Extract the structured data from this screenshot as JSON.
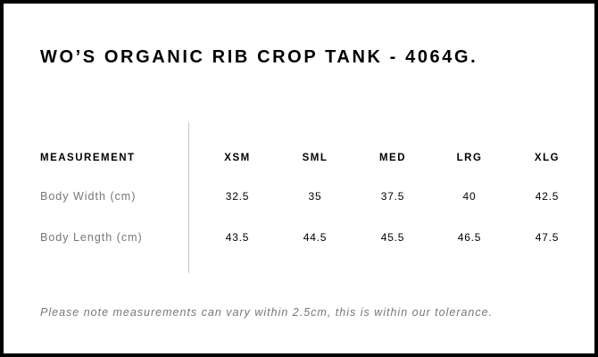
{
  "title": "WO’S ORGANIC RIB CROP TANK - 4064G.",
  "table": {
    "header_label": "MEASUREMENT",
    "sizes": [
      "XSM",
      "SML",
      "MED",
      "LRG",
      "XLG"
    ],
    "rows": [
      {
        "label": "Body Width (cm)",
        "values": [
          "32.5",
          "35",
          "37.5",
          "40",
          "42.5"
        ]
      },
      {
        "label": "Body Length (cm)",
        "values": [
          "43.5",
          "44.5",
          "45.5",
          "46.5",
          "47.5"
        ]
      }
    ]
  },
  "note": "Please note measurements can vary within 2.5cm, this is within our tolerance."
}
